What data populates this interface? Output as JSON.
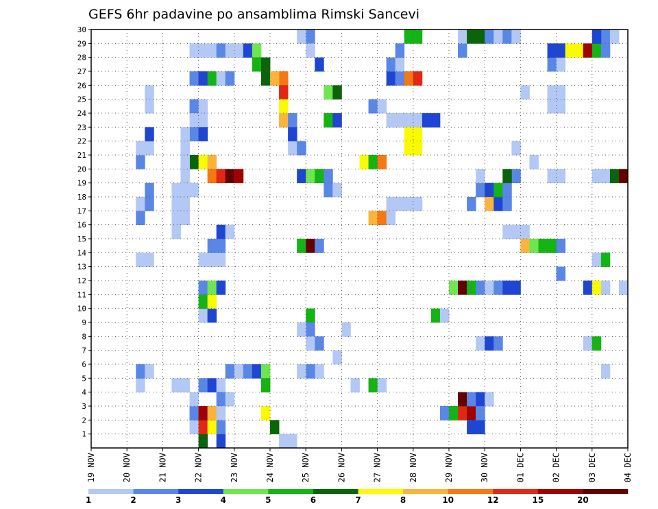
{
  "chart_data": {
    "type": "heatmap",
    "title": "GEFS 6hr padavine po ansamblima Rimski Sancevi",
    "x_tick_labels": [
      "19 NOV",
      "20 NOV",
      "21 NOV",
      "22 NOV",
      "23 NOV",
      "24 NOV",
      "25 NOV",
      "26 NOV",
      "27 NOV",
      "28 NOV",
      "29 NOV",
      "30 NOV",
      "01 DEC",
      "02 DEC",
      "03 DEC",
      "04 DEC"
    ],
    "x_unit": "6-hour steps from 19 NOV 00Z",
    "xlim": [
      0,
      60
    ],
    "y_tick_labels": [
      "1",
      "2",
      "3",
      "4",
      "5",
      "6",
      "7",
      "8",
      "9",
      "10",
      "11",
      "12",
      "13",
      "14",
      "15",
      "16",
      "17",
      "18",
      "19",
      "20",
      "21",
      "22",
      "23",
      "24",
      "25",
      "26",
      "27",
      "28",
      "29",
      "30"
    ],
    "ylim": [
      0,
      30
    ],
    "grid": true,
    "legend": {
      "placement": "bottom",
      "labels": [
        "1",
        "2",
        "3",
        "4",
        "5",
        "6",
        "7",
        "8",
        "10",
        "12",
        "15",
        "20"
      ],
      "colors": [
        "#b4c8f5",
        "#5a87e6",
        "#1e46d2",
        "#6ee650",
        "#14b414",
        "#0a640a",
        "#fafa00",
        "#fab43c",
        "#f57814",
        "#e12814",
        "#a00000",
        "#640000"
      ]
    },
    "cells": [
      [
        11,
        1,
        1
      ],
      [
        11,
        2,
        2
      ],
      [
        11,
        3,
        1
      ],
      [
        12,
        4,
        2
      ],
      [
        13,
        4,
        3
      ],
      [
        14,
        4,
        1
      ],
      [
        14,
        3,
        2
      ],
      [
        15,
        3,
        1
      ],
      [
        15,
        5,
        2
      ],
      [
        16,
        5,
        1
      ],
      [
        17,
        5,
        2
      ],
      [
        18,
        5,
        3
      ],
      [
        19,
        5,
        4
      ],
      [
        19,
        4,
        5
      ],
      [
        19,
        2,
        7
      ],
      [
        20,
        1,
        6
      ],
      [
        21,
        0,
        1
      ],
      [
        22,
        0,
        1
      ],
      [
        11,
        28,
        1
      ],
      [
        12,
        28,
        1
      ],
      [
        13,
        28,
        1
      ],
      [
        14,
        28,
        2
      ],
      [
        15,
        28,
        1
      ],
      [
        16,
        28,
        1
      ],
      [
        17,
        28,
        3
      ],
      [
        18,
        28,
        4
      ],
      [
        18,
        27,
        5
      ],
      [
        19,
        27,
        6
      ],
      [
        19,
        26,
        6
      ],
      [
        20,
        26,
        8
      ],
      [
        21,
        26,
        9
      ],
      [
        21,
        25,
        10
      ],
      [
        21,
        23,
        8
      ],
      [
        22,
        21,
        1
      ],
      [
        23,
        21,
        2
      ],
      [
        23,
        19,
        3
      ],
      [
        24,
        19,
        4
      ],
      [
        25,
        19,
        5
      ],
      [
        26,
        19,
        2
      ],
      [
        11,
        26,
        2
      ],
      [
        12,
        26,
        3
      ],
      [
        13,
        26,
        5
      ],
      [
        14,
        26,
        1
      ],
      [
        15,
        26,
        2
      ],
      [
        11,
        24,
        2
      ],
      [
        12,
        24,
        1
      ],
      [
        11,
        23,
        1
      ],
      [
        12,
        23,
        1
      ],
      [
        11,
        22,
        2
      ],
      [
        12,
        22,
        3
      ],
      [
        11,
        20,
        6
      ],
      [
        12,
        20,
        7
      ],
      [
        13,
        20,
        8
      ],
      [
        13,
        19,
        9
      ],
      [
        14,
        19,
        10
      ],
      [
        15,
        19,
        12
      ],
      [
        16,
        19,
        11
      ],
      [
        12,
        0,
        6
      ],
      [
        12,
        1,
        10
      ],
      [
        12,
        2,
        11
      ],
      [
        13,
        1,
        7
      ],
      [
        13,
        2,
        8
      ],
      [
        14,
        0,
        3
      ],
      [
        14,
        1,
        2
      ],
      [
        14,
        2,
        1
      ],
      [
        12,
        9,
        1
      ],
      [
        13,
        9,
        3
      ],
      [
        12,
        10,
        5
      ],
      [
        13,
        10,
        7
      ],
      [
        12,
        11,
        2
      ],
      [
        13,
        11,
        4
      ],
      [
        14,
        11,
        3
      ],
      [
        12,
        13,
        1
      ],
      [
        13,
        13,
        1
      ],
      [
        14,
        13,
        1
      ],
      [
        13,
        14,
        2
      ],
      [
        14,
        14,
        2
      ],
      [
        14,
        15,
        3
      ],
      [
        15,
        15,
        1
      ],
      [
        5,
        4,
        1
      ],
      [
        5,
        5,
        2
      ],
      [
        6,
        5,
        1
      ],
      [
        5,
        13,
        1
      ],
      [
        6,
        13,
        1
      ],
      [
        5,
        16,
        2
      ],
      [
        5,
        17,
        1
      ],
      [
        6,
        17,
        2
      ],
      [
        6,
        18,
        2
      ],
      [
        5,
        20,
        2
      ],
      [
        5,
        21,
        1
      ],
      [
        6,
        21,
        1
      ],
      [
        6,
        22,
        3
      ],
      [
        6,
        24,
        1
      ],
      [
        6,
        25,
        1
      ],
      [
        9,
        4,
        1
      ],
      [
        10,
        4,
        1
      ],
      [
        9,
        15,
        1
      ],
      [
        9,
        16,
        1
      ],
      [
        9,
        17,
        1
      ],
      [
        10,
        16,
        1
      ],
      [
        10,
        17,
        1
      ],
      [
        9,
        18,
        1
      ],
      [
        10,
        18,
        1
      ],
      [
        10,
        19,
        1
      ],
      [
        10,
        20,
        1
      ],
      [
        10,
        21,
        1
      ],
      [
        10,
        22,
        1
      ],
      [
        11,
        18,
        1
      ],
      [
        20,
        26,
        8
      ],
      [
        21,
        24,
        7
      ],
      [
        22,
        23,
        2
      ],
      [
        22,
        22,
        3
      ],
      [
        23,
        14,
        5
      ],
      [
        24,
        14,
        12
      ],
      [
        25,
        14,
        2
      ],
      [
        24,
        9,
        5
      ],
      [
        24,
        8,
        2
      ],
      [
        23,
        8,
        1
      ],
      [
        24,
        7,
        1
      ],
      [
        25,
        7,
        2
      ],
      [
        25,
        5,
        1
      ],
      [
        24,
        5,
        2
      ],
      [
        23,
        5,
        1
      ],
      [
        25,
        27,
        3
      ],
      [
        24,
        29,
        2
      ],
      [
        23,
        29,
        1
      ],
      [
        24,
        28,
        1
      ],
      [
        26,
        18,
        2
      ],
      [
        27,
        18,
        1
      ],
      [
        26,
        23,
        5
      ],
      [
        27,
        23,
        3
      ],
      [
        27,
        6,
        1
      ],
      [
        28,
        8,
        1
      ],
      [
        29,
        4,
        1
      ],
      [
        26,
        25,
        4
      ],
      [
        27,
        25,
        6
      ],
      [
        30,
        20,
        7
      ],
      [
        31,
        20,
        5
      ],
      [
        32,
        20,
        9
      ],
      [
        31,
        16,
        8
      ],
      [
        32,
        16,
        9
      ],
      [
        33,
        16,
        1
      ],
      [
        31,
        4,
        5
      ],
      [
        32,
        4,
        1
      ],
      [
        31,
        24,
        2
      ],
      [
        32,
        24,
        1
      ],
      [
        33,
        26,
        3
      ],
      [
        34,
        26,
        2
      ],
      [
        35,
        26,
        9
      ],
      [
        36,
        26,
        10
      ],
      [
        33,
        27,
        2
      ],
      [
        34,
        27,
        1
      ],
      [
        33,
        23,
        1
      ],
      [
        34,
        23,
        1
      ],
      [
        35,
        23,
        1
      ],
      [
        36,
        23,
        1
      ],
      [
        37,
        23,
        3
      ],
      [
        38,
        23,
        3
      ],
      [
        35,
        22,
        7
      ],
      [
        36,
        22,
        7
      ],
      [
        35,
        21,
        7
      ],
      [
        36,
        21,
        7
      ],
      [
        34,
        28,
        2
      ],
      [
        35,
        29,
        5
      ],
      [
        36,
        29,
        5
      ],
      [
        33,
        17,
        1
      ],
      [
        34,
        17,
        1
      ],
      [
        35,
        17,
        1
      ],
      [
        36,
        17,
        1
      ],
      [
        38,
        9,
        5
      ],
      [
        39,
        9,
        1
      ],
      [
        39,
        2,
        2
      ],
      [
        40,
        2,
        5
      ],
      [
        41,
        2,
        10
      ],
      [
        42,
        2,
        11
      ],
      [
        43,
        2,
        1
      ],
      [
        42,
        1,
        3
      ],
      [
        43,
        1,
        3
      ],
      [
        40,
        11,
        4
      ],
      [
        41,
        11,
        12
      ],
      [
        42,
        11,
        5
      ],
      [
        43,
        11,
        2
      ],
      [
        44,
        11,
        1
      ],
      [
        41,
        3,
        12
      ],
      [
        42,
        3,
        2
      ],
      [
        43,
        3,
        3
      ],
      [
        44,
        3,
        1
      ],
      [
        43,
        7,
        1
      ],
      [
        44,
        7,
        3
      ],
      [
        45,
        7,
        2
      ],
      [
        43,
        2,
        2
      ],
      [
        42,
        17,
        2
      ],
      [
        43,
        18,
        2
      ],
      [
        43,
        19,
        1
      ],
      [
        44,
        18,
        3
      ],
      [
        44,
        17,
        8
      ],
      [
        45,
        17,
        3
      ],
      [
        45,
        18,
        5
      ],
      [
        46,
        18,
        2
      ],
      [
        46,
        17,
        2
      ],
      [
        47,
        19,
        2
      ],
      [
        46,
        19,
        6
      ],
      [
        45,
        11,
        2
      ],
      [
        46,
        11,
        3
      ],
      [
        47,
        11,
        3
      ],
      [
        41,
        28,
        2
      ],
      [
        41,
        29,
        1
      ],
      [
        42,
        29,
        6
      ],
      [
        43,
        29,
        6
      ],
      [
        44,
        29,
        2
      ],
      [
        45,
        29,
        1
      ],
      [
        46,
        29,
        2
      ],
      [
        47,
        29,
        1
      ],
      [
        46,
        15,
        1
      ],
      [
        47,
        15,
        1
      ],
      [
        48,
        15,
        1
      ],
      [
        48,
        14,
        8
      ],
      [
        49,
        14,
        4
      ],
      [
        50,
        14,
        5
      ],
      [
        51,
        14,
        5
      ],
      [
        52,
        14,
        2
      ],
      [
        48,
        25,
        1
      ],
      [
        47,
        21,
        1
      ],
      [
        49,
        20,
        1
      ],
      [
        51,
        19,
        1
      ],
      [
        52,
        19,
        1
      ],
      [
        51,
        24,
        1
      ],
      [
        52,
        24,
        1
      ],
      [
        51,
        25,
        1
      ],
      [
        52,
        25,
        1
      ],
      [
        51,
        27,
        2
      ],
      [
        52,
        27,
        1
      ],
      [
        51,
        28,
        3
      ],
      [
        52,
        28,
        3
      ],
      [
        53,
        28,
        7
      ],
      [
        54,
        28,
        7
      ],
      [
        55,
        28,
        11
      ],
      [
        56,
        28,
        5
      ],
      [
        57,
        28,
        2
      ],
      [
        57,
        29,
        2
      ],
      [
        56,
        29,
        3
      ],
      [
        58,
        29,
        1
      ],
      [
        60,
        29,
        2
      ],
      [
        52,
        12,
        2
      ],
      [
        56,
        13,
        1
      ],
      [
        57,
        13,
        5
      ],
      [
        55,
        11,
        3
      ],
      [
        56,
        11,
        7
      ],
      [
        57,
        11,
        1
      ],
      [
        59,
        11,
        1
      ],
      [
        55,
        7,
        1
      ],
      [
        56,
        7,
        5
      ],
      [
        57,
        5,
        1
      ],
      [
        56,
        19,
        1
      ],
      [
        57,
        19,
        1
      ],
      [
        58,
        19,
        1
      ],
      [
        59,
        19,
        1
      ],
      [
        58,
        19,
        6
      ],
      [
        59,
        19,
        14
      ],
      [
        60,
        19,
        2
      ]
    ]
  }
}
